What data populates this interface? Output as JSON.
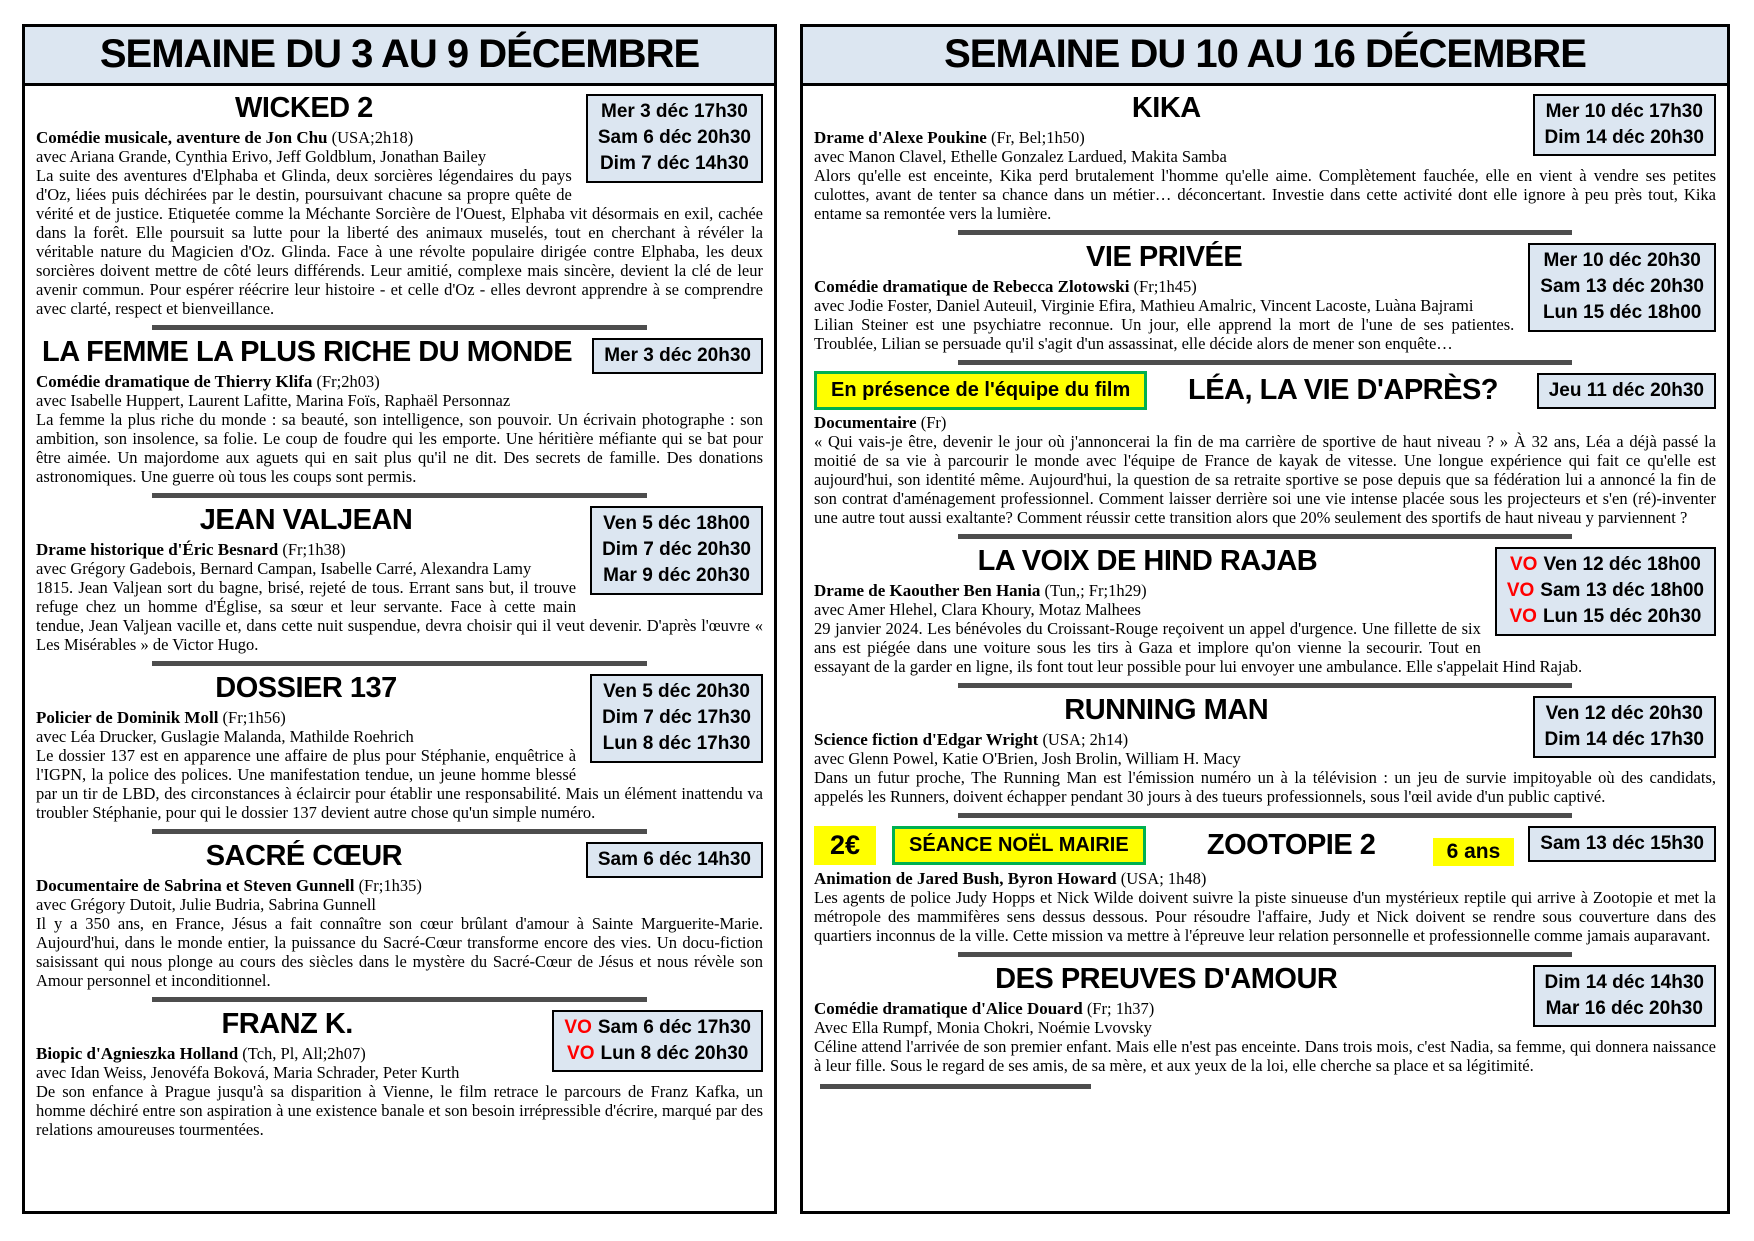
{
  "colors": {
    "box_blue": "#dce6f1",
    "vo_red": "#ff0000",
    "highlight_yellow": "#ffff00",
    "badge_border_green": "#00b050",
    "separator_gray": "#4d4d4d"
  },
  "pages": [
    {
      "title": "SEMAINE DU 3 AU 9 DÉCEMBRE",
      "films": [
        {
          "title": "WICKED 2",
          "genre": "Comédie musicale, aventure de Jon Chu",
          "details": "(USA;2h18)",
          "cast": "avec Ariana Grande, Cynthia Erivo, Jeff Goldblum, Jonathan Bailey",
          "description": "La suite des aventures d'Elphaba et Glinda, deux sorcières légendaires du pays d'Oz, liées puis déchirées par le destin, poursuivant chacune sa propre quête de vérité et de justice. Etiquetée comme la Méchante Sorcière de l'Ouest, Elphaba vit désormais en exil, cachée dans la forêt. Elle poursuit sa lutte pour la liberté des animaux muselés, tout en cherchant à révéler la véritable nature du Magicien d'Oz. Glinda. Face à une révolte populaire dirigée contre Elphaba, les deux sorcières doivent mettre de côté leurs différends. Leur amitié, complexe mais sincère, devient la clé de leur avenir commun. Pour espérer réécrire leur histoire - et celle d'Oz - elles devront apprendre à se comprendre avec clarté, respect et bienveillance.",
          "showtimes": [
            {
              "label": "Mer 3 déc 17h30"
            },
            {
              "label": "Sam 6 déc 20h30"
            },
            {
              "label": "Dim 7 déc 14h30"
            }
          ]
        },
        {
          "title": "LA FEMME LA PLUS RICHE DU MONDE",
          "genre": "Comédie dramatique de Thierry Klifa",
          "details": "(Fr;2h03)",
          "cast": "avec Isabelle Huppert, Laurent Lafitte, Marina Foïs, Raphaël Personnaz",
          "description": "La femme la plus riche du monde : sa beauté, son intelligence, son pouvoir. Un écrivain photographe : son ambition, son insolence, sa folie. Le coup de foudre qui les emporte. Une héritière méfiante qui se bat pour être aimée. Un majordome aux aguets qui en sait plus qu'il ne dit. Des secrets de famille. Des donations astronomiques. Une guerre où tous les coups sont permis.",
          "showtimes": [
            {
              "label": "Mer 3 déc 20h30"
            }
          ]
        },
        {
          "title": "JEAN VALJEAN",
          "genre": "Drame historique d'Éric Besnard",
          "details": "(Fr;1h38)",
          "cast": "avec Grégory Gadebois, Bernard Campan, Isabelle Carré, Alexandra Lamy",
          "description": "1815. Jean Valjean sort du bagne, brisé, rejeté de tous. Errant sans but, il trouve refuge chez un homme d'Église, sa sœur et leur servante. Face à cette main tendue, Jean Valjean vacille et, dans cette nuit suspendue, devra choisir qui il veut devenir. D'après l'œuvre « Les Misérables » de Victor Hugo.",
          "showtimes": [
            {
              "label": "Ven 5 déc 18h00"
            },
            {
              "label": "Dim 7 déc 20h30"
            },
            {
              "label": "Mar 9 déc 20h30"
            }
          ]
        },
        {
          "title": "DOSSIER 137",
          "genre": "Policier de Dominik Moll",
          "details": "(Fr;1h56)",
          "cast": "avec Léa Drucker, Guslagie Malanda, Mathilde Roehrich",
          "description": "Le dossier 137 est en apparence une affaire de plus pour Stéphanie, enquêtrice à l'IGPN, la police des polices. Une manifestation tendue, un jeune homme blessé par un tir de LBD, des circonstances à éclaircir pour établir une responsabilité. Mais un élément inattendu va troubler Stéphanie, pour qui le dossier 137 devient autre chose qu'un simple numéro.",
          "showtimes": [
            {
              "label": "Ven 5 déc 20h30"
            },
            {
              "label": "Dim 7 déc 17h30"
            },
            {
              "label": "Lun 8 déc 17h30"
            }
          ]
        },
        {
          "title": "SACRÉ CŒUR",
          "genre": "Documentaire de Sabrina et Steven Gunnell",
          "details": "(Fr;1h35)",
          "cast": "avec Grégory Dutoit, Julie Budria, Sabrina Gunnell",
          "description": "Il y a 350 ans, en France, Jésus a fait connaître son cœur brûlant d'amour à Sainte Marguerite-Marie. Aujourd'hui, dans le monde entier, la puissance du Sacré-Cœur transforme encore des vies. Un docu-fiction saisissant qui nous plonge au cours des siècles dans le mystère du Sacré-Cœur de Jésus et nous révèle son Amour personnel et inconditionnel.",
          "showtimes": [
            {
              "label": "Sam 6 déc 14h30"
            }
          ]
        },
        {
          "title": "FRANZ K.",
          "genre": "Biopic d'Agnieszka Holland",
          "details": "(Tch, Pl, All;2h07)",
          "cast": "avec Idan Weiss, Jenovéfa Boková, Maria Schrader, Peter Kurth",
          "description": "De son enfance à Prague jusqu'à sa disparition à Vienne, le film retrace le parcours de Franz Kafka, un homme déchiré entre son aspiration à une existence banale et son besoin irrépressible d'écrire, marqué par des relations amoureuses tourmentées.",
          "showtimes": [
            {
              "vo": "VO",
              "label": "Sam 6 déc 17h30"
            },
            {
              "vo": "VO",
              "label": "Lun 8 déc 20h30"
            }
          ]
        }
      ]
    },
    {
      "title": "SEMAINE DU 10 AU 16 DÉCEMBRE",
      "trailing_separator": true,
      "films": [
        {
          "title": "KIKA",
          "genre": "Drame d'Alexe Poukine",
          "details": "(Fr, Bel;1h50)",
          "cast": "avec Manon Clavel, Ethelle Gonzalez Lardued, Makita Samba",
          "description": "Alors qu'elle est enceinte, Kika perd brutalement l'homme qu'elle aime. Complètement fauchée, elle en vient à vendre ses petites culottes, avant de tenter sa chance dans un métier… déconcertant. Investie dans cette activité dont elle ignore à peu près tout, Kika entame sa remontée vers la lumière.",
          "showtimes": [
            {
              "label": "Mer 10 déc 17h30"
            },
            {
              "label": "Dim 14 déc 20h30"
            }
          ]
        },
        {
          "title": "VIE PRIVÉE",
          "genre": "Comédie dramatique de Rebecca Zlotowski",
          "details": "(Fr;1h45)",
          "cast": "avec Jodie Foster, Daniel Auteuil, Virginie Efira, Mathieu Amalric, Vincent Lacoste, Luàna Bajrami",
          "description": "Lilian Steiner est une psychiatre reconnue. Un jour, elle apprend la mort de l'une de ses patientes. Troublée, Lilian se persuade qu'il s'agit d'un assassinat, elle décide alors de mener son enquête…",
          "showtimes": [
            {
              "label": "Mer 10 déc 20h30"
            },
            {
              "label": "Sam 13 déc 20h30"
            },
            {
              "label": "Lun 15 déc 18h00"
            }
          ]
        },
        {
          "title": "LÉA, LA VIE D'APRÈS?",
          "badges": [
            {
              "label": "En présence de l'équipe du film",
              "kind": "boxed"
            }
          ],
          "genre": "Documentaire",
          "details": "(Fr)",
          "description": "« Qui vais-je être, devenir le jour où j'annoncerai la fin de ma carrière de sportive de haut niveau ? » À 32 ans, Léa a déjà passé la moitié de sa vie à parcourir le monde avec l'équipe de France de kayak de vitesse. Une longue expérience qui fait ce qu'elle est aujourd'hui, son identité même. Aujourd'hui, la question de sa retraite sportive se pose depuis que sa fédération lui a annoncé la fin de son contrat d'aménagement professionnel. Comment laisser derrière soi une vie intense placée sous les projecteurs et s'en (ré)-inventer une autre tout aussi exaltante? Comment réussir cette transition alors que 20% seulement des sportifs de haut niveau y parviennent ?",
          "showtimes": [
            {
              "label": "Jeu 11 déc 20h30"
            }
          ]
        },
        {
          "title": "LA VOIX DE HIND RAJAB",
          "genre": "Drame de Kaouther Ben Hania",
          "details": "(Tun,; Fr;1h29)",
          "cast": "avec Amer Hlehel, Clara Khoury, Motaz Malhees",
          "description": "29 janvier 2024. Les bénévoles du Croissant-Rouge reçoivent un appel d'urgence. Une fillette de six ans est piégée dans une voiture sous les tirs à Gaza et implore qu'on vienne la secourir. Tout en essayant de la garder en ligne, ils font tout leur possible pour lui envoyer une ambulance. Elle s'appelait Hind Rajab.",
          "showtimes": [
            {
              "vo": "VO",
              "label": "Ven 12 déc 18h00"
            },
            {
              "vo": "VO",
              "label": "Sam 13 déc 18h00"
            },
            {
              "vo": "VO",
              "label": "Lun 15 déc 20h30"
            }
          ]
        },
        {
          "title": "RUNNING MAN",
          "genre": "Science fiction d'Edgar Wright",
          "details": "(USA; 2h14)",
          "cast": "avec Glenn Powel, Katie O'Brien, Josh Brolin, William H. Macy",
          "description": "Dans un futur proche, The Running Man est l'émission numéro un à la télévision : un jeu de survie impitoyable où des candidats, appelés les Runners, doivent échapper pendant 30 jours à des tueurs professionnels, sous l'œil avide d'un public captivé.",
          "showtimes": [
            {
              "label": "Ven 12 déc 20h30"
            },
            {
              "label": "Dim 14 déc 17h30"
            }
          ]
        },
        {
          "title": "ZOOTOPIE 2",
          "badges": [
            {
              "label": "2€",
              "kind": "price"
            },
            {
              "label": "SÉANCE NOËL MAIRIE",
              "kind": "boxed"
            }
          ],
          "age_badge": "6 ans",
          "genre": "Animation de Jared Bush, Byron Howard",
          "details": "(USA; 1h48)",
          "description": "Les agents de police Judy Hopps et Nick Wilde doivent suivre la piste sinueuse d'un mystérieux reptile qui arrive à Zootopie et met la métropole des mammifères sens dessus dessous. Pour résoudre l'affaire, Judy et Nick doivent se rendre sous couverture dans des quartiers inconnus de la ville. Cette mission va mettre à l'épreuve leur relation personnelle et professionnelle comme jamais auparavant.",
          "showtimes": [
            {
              "label": "Sam 13 déc 15h30"
            }
          ]
        },
        {
          "title": "DES PREUVES D'AMOUR",
          "genre": "Comédie dramatique d'Alice Douard",
          "details": "(Fr; 1h37)",
          "cast": "Avec Ella Rumpf, Monia Chokri, Noémie Lvovsky",
          "description": "Céline attend l'arrivée de son premier enfant. Mais elle n'est pas enceinte. Dans trois mois, c'est Nadia, sa femme, qui donnera naissance à leur fille. Sous le regard de ses amis, de sa mère, et aux yeux de la loi, elle cherche sa place et sa légitimité.",
          "showtimes": [
            {
              "label": "Dim 14 déc 14h30"
            },
            {
              "label": "Mar 16 déc 20h30"
            }
          ]
        }
      ]
    }
  ]
}
